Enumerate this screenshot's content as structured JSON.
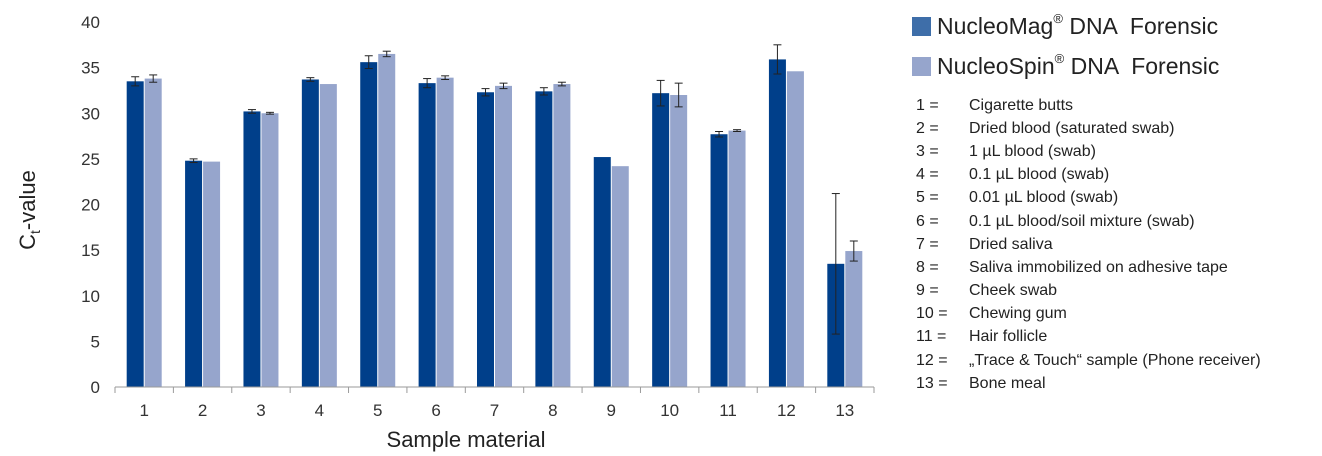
{
  "chart_data": {
    "type": "bar",
    "categories": [
      "1",
      "2",
      "3",
      "4",
      "5",
      "6",
      "7",
      "8",
      "9",
      "10",
      "11",
      "12",
      "13"
    ],
    "series": [
      {
        "name": "NucleoMag DNA Forensic",
        "color": "#003f8a",
        "values": [
          33.5,
          24.8,
          30.2,
          33.7,
          35.6,
          33.3,
          32.3,
          32.4,
          25.2,
          32.2,
          27.7,
          35.9,
          13.5
        ],
        "errors": [
          0.5,
          0.2,
          0.2,
          0.2,
          0.7,
          0.5,
          0.4,
          0.4,
          0,
          1.4,
          0.3,
          1.6,
          7.7
        ]
      },
      {
        "name": "NucleoSpin DNA Forensic",
        "color": "#96a5cc",
        "values": [
          33.8,
          24.7,
          30.0,
          33.2,
          36.5,
          33.9,
          33.0,
          33.2,
          24.2,
          32.0,
          28.1,
          34.6,
          14.9
        ],
        "errors": [
          0.4,
          0,
          0.1,
          0,
          0.3,
          0.2,
          0.3,
          0.2,
          0,
          1.3,
          0.1,
          0,
          1.1
        ]
      }
    ],
    "xlabel": "Sample material",
    "ylabel": "Ct-value",
    "ylim": [
      0,
      40
    ],
    "yticks": [
      0,
      5,
      10,
      15,
      20,
      25,
      30,
      35,
      40
    ],
    "grid": false,
    "legend_position": "right"
  },
  "legend": {
    "items": [
      {
        "name": "NucleoMag",
        "mark": "®",
        "text": "DNA",
        "suffix": "Forensic",
        "color": "#3e6ea9"
      },
      {
        "name": "NucleoSpin",
        "mark": "®",
        "text": "DNA",
        "suffix": "Forensic",
        "color": "#96a5cc"
      }
    ]
  },
  "key": [
    {
      "num": "1 =",
      "label": "Cigarette butts"
    },
    {
      "num": "2 =",
      "label": "Dried blood (saturated swab)"
    },
    {
      "num": "3 =",
      "label": "1 µL blood (swab)"
    },
    {
      "num": "4 =",
      "label": "0.1 µL blood (swab)"
    },
    {
      "num": "5 =",
      "label": "0.01 µL blood (swab)"
    },
    {
      "num": "6 =",
      "label": "0.1 µL blood/soil mixture (swab)"
    },
    {
      "num": "7 =",
      "label": "Dried saliva"
    },
    {
      "num": "8 =",
      "label": "Saliva immobilized on adhesive tape"
    },
    {
      "num": "9 =",
      "label": "Cheek swab"
    },
    {
      "num": "10 =",
      "label": "Chewing gum"
    },
    {
      "num": "11 =",
      "label": "Hair follicle"
    },
    {
      "num": "12 =",
      "label": "„Trace & Touch“ sample (Phone receiver)"
    },
    {
      "num": "13 =",
      "label": "Bone meal"
    }
  ],
  "ylabel_parts": {
    "main": "C",
    "sub": "t",
    "rest": "-value"
  }
}
